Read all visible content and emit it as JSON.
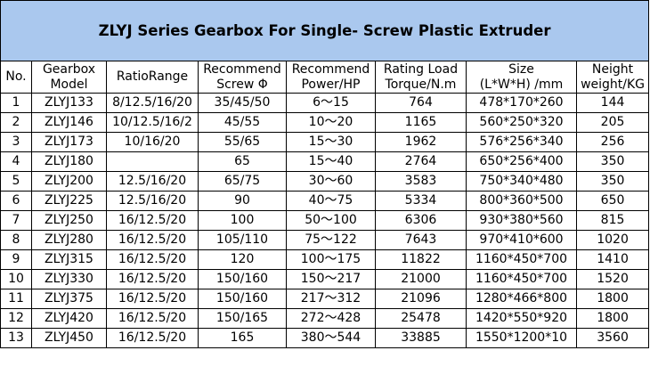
{
  "title": "ZLYJ Series Gearbox For Single- Screw Plastic Extruder",
  "headers": [
    [
      "No."
    ],
    [
      "Gearbox",
      "Model"
    ],
    [
      "RatioRange"
    ],
    [
      "Recommend",
      "Screw Φ"
    ],
    [
      "Recommend",
      "Power/HP"
    ],
    [
      "Rating Load",
      "Torque/N.m"
    ],
    [
      "Size",
      "(L*W*H) /mm"
    ],
    [
      "Neight",
      "weight/KG"
    ]
  ],
  "rows": [
    [
      "1",
      "ZLYJ133",
      "8/12.5/16/20",
      "35/45/50",
      "6～15",
      "764",
      "478*170*260",
      "144"
    ],
    [
      "2",
      "ZLYJ146",
      "10/12.5/16/2",
      "45/55",
      "10～20",
      "1165",
      "560*250*320",
      "205"
    ],
    [
      "3",
      "ZLYJ173",
      "10/16/20",
      "55/65",
      "15～30",
      "1962",
      "576*256*340",
      "256"
    ],
    [
      "4",
      "ZLYJ180",
      "",
      "65",
      "15～40",
      "2764",
      "650*256*400",
      "350"
    ],
    [
      "5",
      "ZLYJ200",
      "12.5/16/20",
      "65/75",
      "30～60",
      "3583",
      "750*340*480",
      "350"
    ],
    [
      "6",
      "ZLYJ225",
      "12.5/16/20",
      "90",
      "40～75",
      "5334",
      "800*360*500",
      "650"
    ],
    [
      "7",
      "ZLYJ250",
      "16/12.5/20",
      "100",
      "50～100",
      "6306",
      "930*380*560",
      "815"
    ],
    [
      "8",
      "ZLYJ280",
      "16/12.5/20",
      "105/110",
      "75～122",
      "7643",
      "970*410*600",
      "1020"
    ],
    [
      "9",
      "ZLYJ315",
      "16/12.5/20",
      "120",
      "100～175",
      "11822",
      "1160*450*700",
      "1410"
    ],
    [
      "10",
      "ZLYJ330",
      "16/12.5/20",
      "150/160",
      "150～217",
      "21000",
      "1160*450*700",
      "1520"
    ],
    [
      "11",
      "ZLYJ375",
      "16/12.5/20",
      "150/160",
      "217～312",
      "21096",
      "1280*466*800",
      "1800"
    ],
    [
      "12",
      "ZLYJ420",
      "16/12.5/20",
      "150/165",
      "272～428",
      "25478",
      "1420*550*920",
      "1800"
    ],
    [
      "13",
      "ZLYJ450",
      "16/12.5/20",
      "165",
      "380～544",
      "33885",
      "1550*1200*10",
      "3560"
    ]
  ],
  "colors": {
    "title_background": "#aac8ee",
    "border": "#000000"
  }
}
